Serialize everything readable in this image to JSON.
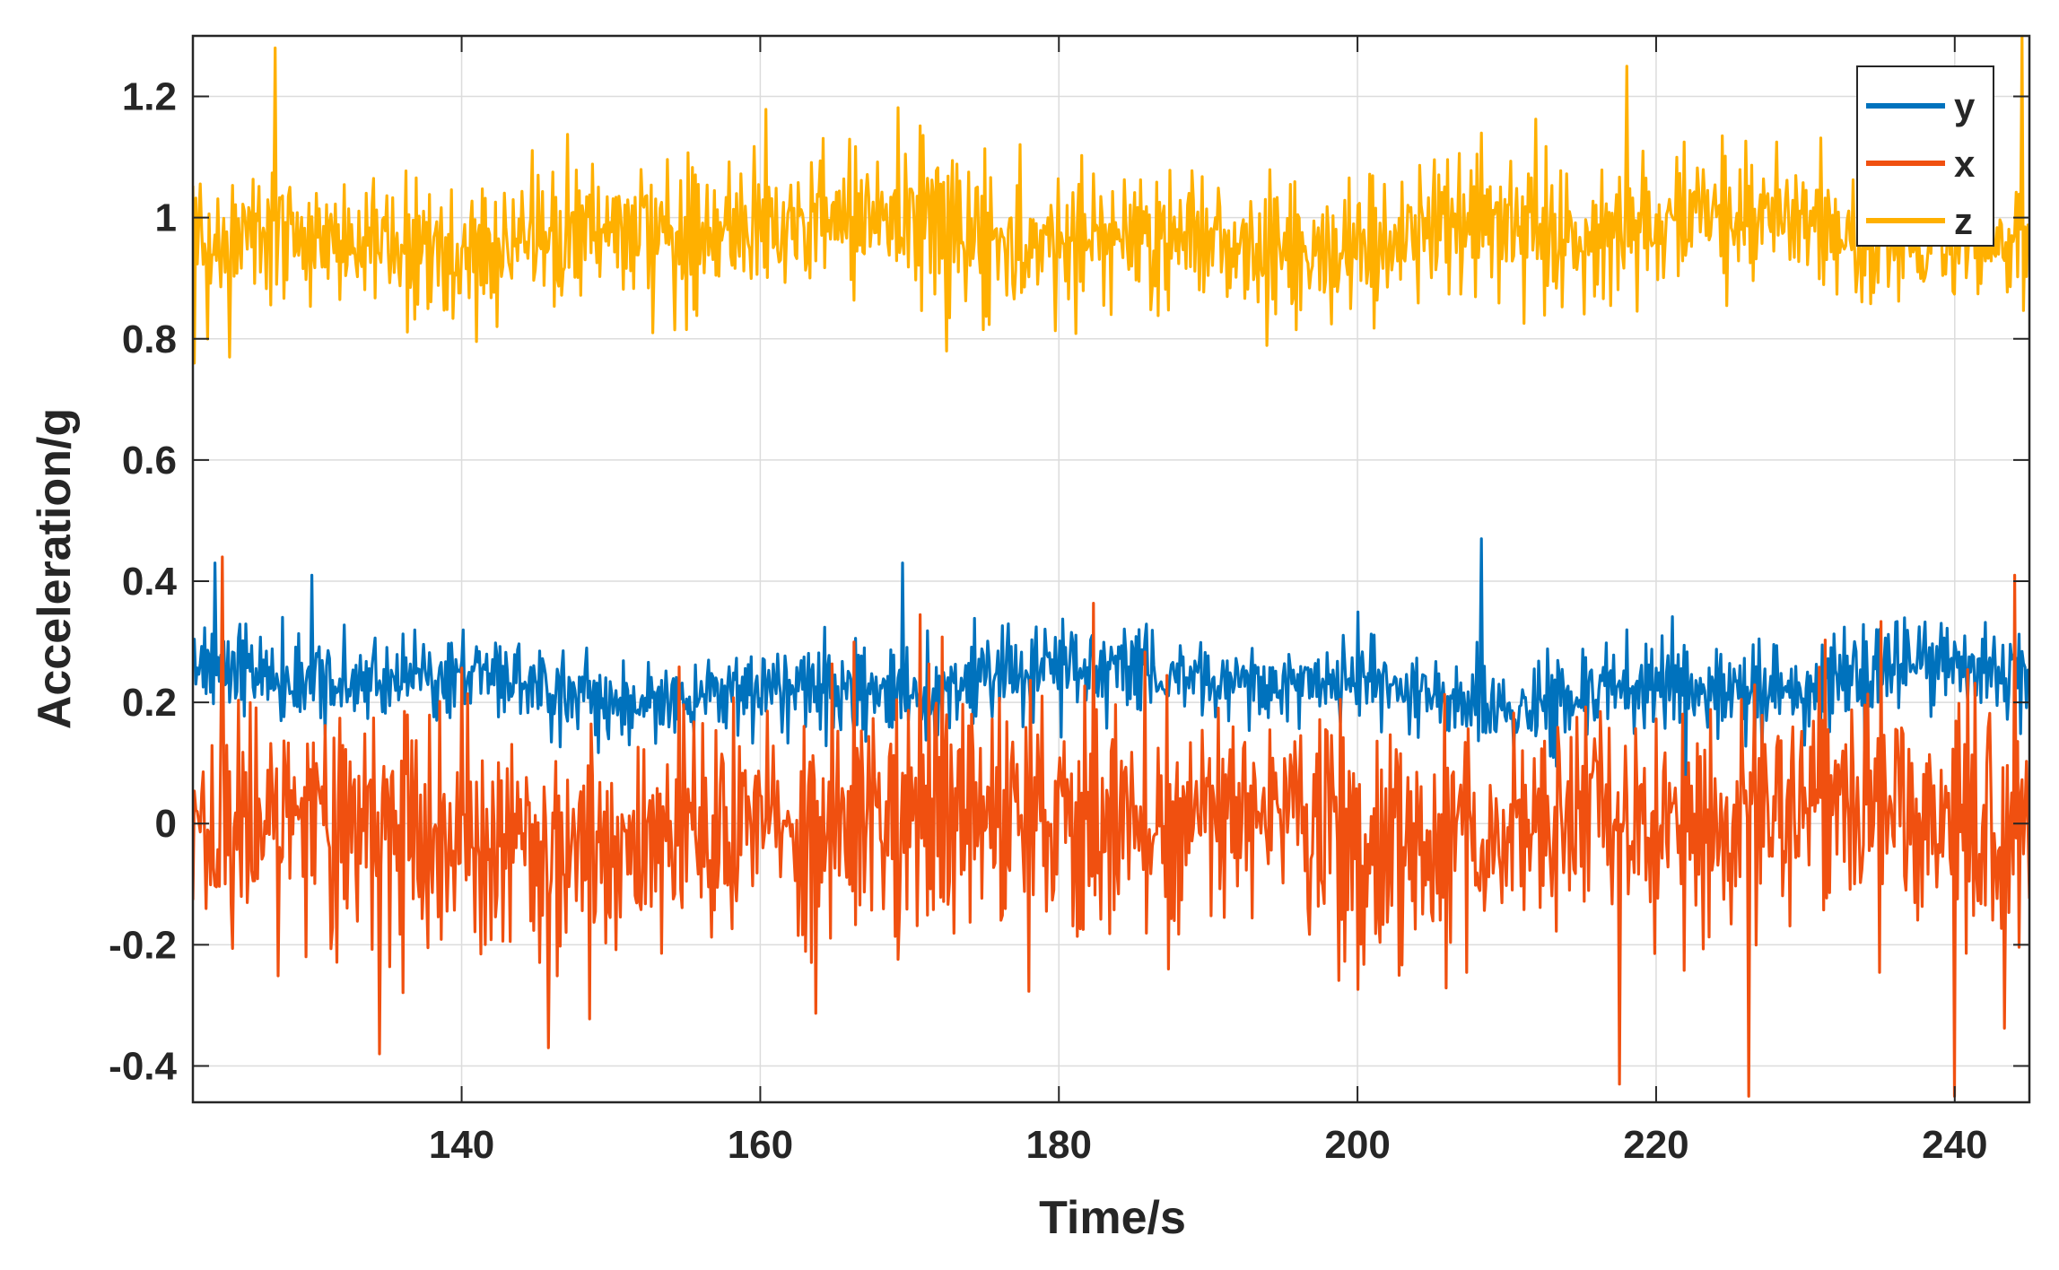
{
  "chart_data": {
    "type": "line",
    "xlabel": "Time/s",
    "ylabel": "Acceleration/g",
    "xlim": [
      122,
      245
    ],
    "ylim": [
      -0.46,
      1.3
    ],
    "xticks": [
      140,
      160,
      180,
      200,
      220,
      240
    ],
    "yticks": [
      -0.4,
      -0.2,
      0,
      0.2,
      0.4,
      0.6,
      0.8,
      1,
      1.2
    ],
    "xtick_labels": [
      "140",
      "160",
      "180",
      "200",
      "220",
      "240"
    ],
    "ytick_labels": [
      "-0.4",
      "-0.2",
      "0",
      "0.2",
      "0.4",
      "0.6",
      "0.8",
      "1",
      "1.2"
    ],
    "grid": true,
    "legend_position": "top-right",
    "series": [
      {
        "name": "y",
        "color": "#0072BD",
        "mean": 0.23,
        "x_range": [
          122,
          245
        ],
        "approx_range": [
          0.03,
          0.47
        ],
        "notable_points": [
          [
            123.5,
            0.43
          ],
          [
            130,
            0.41
          ],
          [
            169.5,
            0.43
          ],
          [
            208.3,
            0.47
          ],
          [
            222,
            0.04
          ]
        ]
      },
      {
        "name": "x",
        "color": "#F05010",
        "mean": 0.0,
        "x_range": [
          122,
          245
        ],
        "approx_range": [
          -0.45,
          0.44
        ],
        "notable_points": [
          [
            124,
            0.44
          ],
          [
            134.5,
            -0.38
          ],
          [
            145.8,
            -0.37
          ],
          [
            217.5,
            -0.43
          ],
          [
            226.2,
            -0.45
          ],
          [
            240,
            -0.45
          ],
          [
            244,
            0.41
          ]
        ]
      },
      {
        "name": "z",
        "color": "#FFB000",
        "mean": 0.97,
        "x_range": [
          122,
          245
        ],
        "approx_range": [
          0.76,
          1.3
        ],
        "notable_points": [
          [
            124.5,
            0.77
          ],
          [
            127.5,
            1.28
          ],
          [
            172.5,
            0.78
          ],
          [
            218,
            1.25
          ],
          [
            244.5,
            1.3
          ]
        ]
      }
    ]
  }
}
